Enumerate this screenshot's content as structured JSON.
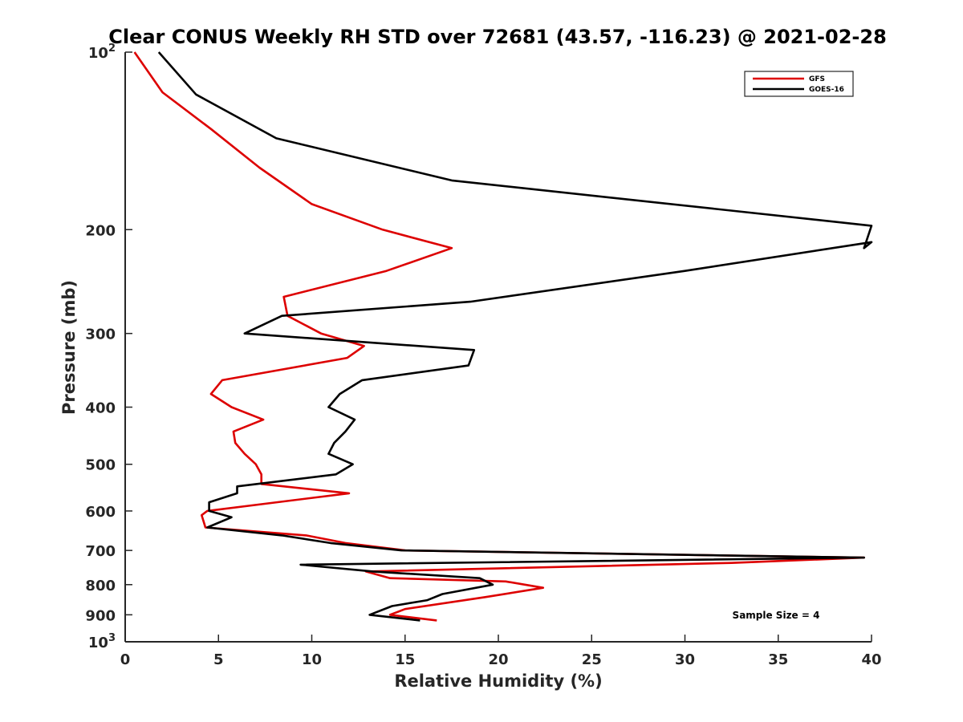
{
  "chart_data": {
    "type": "line",
    "title": "Clear CONUS Weekly RH STD over 72681 (43.57, -116.23) @ 2021-02-28",
    "xlabel": "Relative Humidity (%)",
    "ylabel": "Pressure (mb)",
    "xlim": [
      0,
      40
    ],
    "ylim": [
      100,
      1000
    ],
    "y_scale": "log",
    "y_reversed": true,
    "grid": false,
    "legend_position": "top-right",
    "x_ticks": [
      "0",
      "5",
      "10",
      "15",
      "20",
      "25",
      "30",
      "35",
      "40"
    ],
    "y_ticks": [
      {
        "value": 100,
        "base": "10",
        "exp": "2"
      },
      {
        "value": 200,
        "label": "200"
      },
      {
        "value": 300,
        "label": "300"
      },
      {
        "value": 400,
        "label": "400"
      },
      {
        "value": 500,
        "label": "500"
      },
      {
        "value": 600,
        "label": "600"
      },
      {
        "value": 700,
        "label": "700"
      },
      {
        "value": 800,
        "label": "800"
      },
      {
        "value": 900,
        "label": "900"
      },
      {
        "value": 1000,
        "base": "10",
        "exp": "3"
      }
    ],
    "annotation": "Sample Size = 4",
    "series": [
      {
        "name": "GFS",
        "color": "#dd0000",
        "points": [
          [
            0.5,
            100
          ],
          [
            2.0,
            117
          ],
          [
            4.6,
            135
          ],
          [
            7.2,
            157
          ],
          [
            10.0,
            181
          ],
          [
            13.8,
            200
          ],
          [
            17.5,
            215
          ],
          [
            14.0,
            235
          ],
          [
            8.5,
            260
          ],
          [
            8.7,
            280
          ],
          [
            10.5,
            300
          ],
          [
            12.8,
            315
          ],
          [
            11.9,
            330
          ],
          [
            5.2,
            360
          ],
          [
            4.6,
            380
          ],
          [
            5.7,
            400
          ],
          [
            7.4,
            420
          ],
          [
            5.8,
            440
          ],
          [
            5.9,
            460
          ],
          [
            6.4,
            480
          ],
          [
            7.0,
            500
          ],
          [
            7.3,
            520
          ],
          [
            7.3,
            540
          ],
          [
            12.0,
            560
          ],
          [
            4.4,
            600
          ],
          [
            4.1,
            610
          ],
          [
            4.3,
            640
          ],
          [
            9.7,
            660
          ],
          [
            11.8,
            680
          ],
          [
            15.0,
            700
          ],
          [
            39.6,
            720
          ],
          [
            32.5,
            735
          ],
          [
            12.9,
            760
          ],
          [
            14.2,
            780
          ],
          [
            20.4,
            790
          ],
          [
            22.4,
            810
          ],
          [
            19.3,
            840
          ],
          [
            15.0,
            880
          ],
          [
            14.2,
            900
          ],
          [
            16.7,
            920
          ]
        ]
      },
      {
        "name": "GOES-16",
        "color": "#000000",
        "points": [
          [
            1.8,
            100
          ],
          [
            3.8,
            118
          ],
          [
            8.1,
            140
          ],
          [
            17.5,
            165
          ],
          [
            40.0,
            197
          ],
          [
            39.6,
            215
          ],
          [
            40.0,
            210
          ],
          [
            30.0,
            235
          ],
          [
            18.5,
            265
          ],
          [
            8.4,
            280
          ],
          [
            6.4,
            300
          ],
          [
            18.7,
            320
          ],
          [
            18.4,
            340
          ],
          [
            12.7,
            360
          ],
          [
            11.5,
            380
          ],
          [
            10.9,
            400
          ],
          [
            12.3,
            420
          ],
          [
            11.8,
            440
          ],
          [
            11.2,
            460
          ],
          [
            10.9,
            480
          ],
          [
            12.2,
            500
          ],
          [
            11.3,
            520
          ],
          [
            6.0,
            545
          ],
          [
            6.0,
            560
          ],
          [
            4.5,
            580
          ],
          [
            4.5,
            600
          ],
          [
            5.7,
            615
          ],
          [
            4.4,
            640
          ],
          [
            8.4,
            660
          ],
          [
            11.0,
            680
          ],
          [
            14.8,
            700
          ],
          [
            39.6,
            720
          ],
          [
            9.4,
            740
          ],
          [
            13.3,
            760
          ],
          [
            19.0,
            780
          ],
          [
            19.7,
            800
          ],
          [
            17.0,
            830
          ],
          [
            16.2,
            850
          ],
          [
            14.3,
            870
          ],
          [
            13.1,
            900
          ],
          [
            15.8,
            920
          ]
        ]
      }
    ]
  }
}
